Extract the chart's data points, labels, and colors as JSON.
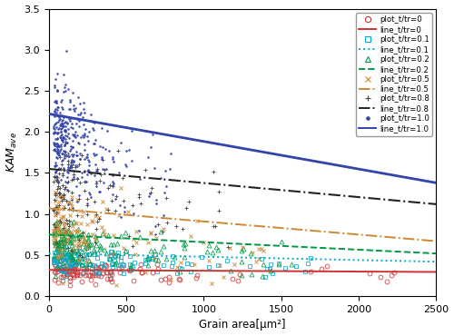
{
  "xlabel": "Grain area[μm²]",
  "xlim": [
    0,
    2500
  ],
  "ylim": [
    0.0,
    3.5
  ],
  "yticks": [
    0.0,
    0.5,
    1.0,
    1.5,
    2.0,
    2.5,
    3.0,
    3.5
  ],
  "xticks": [
    0,
    500,
    1000,
    1500,
    2000,
    2500
  ],
  "series": [
    {
      "label": "t/tr=0",
      "color_plot": "#cc3333",
      "color_line": "#cc3333",
      "marker": "o",
      "mfc": "none",
      "ms": 3.5,
      "mew": 0.6,
      "linestyle": "-",
      "lw": 1.4,
      "line_y0": 0.32,
      "line_y1": 0.295,
      "n_points": 90,
      "x_scale": 250,
      "x_max_scatter": 2300,
      "y_base": 0.3,
      "y_std": 0.07,
      "n_uniform": 30
    },
    {
      "label": "t/tr=0.1",
      "color_plot": "#00aacc",
      "color_line": "#00aacc",
      "marker": "s",
      "mfc": "none",
      "ms": 3.5,
      "mew": 0.6,
      "linestyle": "dotted",
      "lw": 1.4,
      "line_y0": 0.52,
      "line_y1": 0.42,
      "n_points": 120,
      "x_scale": 200,
      "x_max_scatter": 1700,
      "y_base": 0.46,
      "y_std": 0.09,
      "n_uniform": 40
    },
    {
      "label": "t/tr=0.2",
      "color_plot": "#009944",
      "color_line": "#009944",
      "marker": "^",
      "mfc": "none",
      "ms": 3.5,
      "mew": 0.6,
      "linestyle": "dashed",
      "lw": 1.4,
      "line_y0": 0.75,
      "line_y1": 0.52,
      "n_points": 120,
      "x_scale": 180,
      "x_max_scatter": 1600,
      "y_base": 0.65,
      "y_std": 0.13,
      "n_uniform": 40
    },
    {
      "label": "t/tr=0.5",
      "color_plot": "#cc8833",
      "color_line": "#cc8833",
      "marker": "x",
      "mfc": "#cc8833",
      "ms": 3.5,
      "mew": 0.7,
      "linestyle": "dashdot",
      "lw": 1.4,
      "line_y0": 1.07,
      "line_y1": 0.67,
      "n_points": 110,
      "x_scale": 160,
      "x_max_scatter": 1400,
      "y_base": 0.88,
      "y_std": 0.22,
      "n_uniform": 35
    },
    {
      "label": "t/tr=0.8",
      "color_plot": "#444444",
      "color_line": "#222222",
      "marker": "+",
      "mfc": "#444444",
      "ms": 3.5,
      "mew": 0.7,
      "linestyle": "dashdot",
      "lw": 1.5,
      "line_y0": 1.55,
      "line_y1": 1.12,
      "n_points": 100,
      "x_scale": 150,
      "x_max_scatter": 1200,
      "y_base": 1.28,
      "y_std": 0.28,
      "n_uniform": 30
    },
    {
      "label": "t/tr=1.0",
      "color_plot": "#3344aa",
      "color_line": "#3344aa",
      "marker": ".",
      "mfc": "#3344aa",
      "ms": 2.5,
      "mew": 0.5,
      "linestyle": "-",
      "lw": 2.0,
      "line_y0": 2.22,
      "line_y1": 1.38,
      "n_points": 300,
      "x_scale": 130,
      "x_max_scatter": 800,
      "y_base": 2.05,
      "y_std": 0.3,
      "n_uniform": 50
    }
  ],
  "legend_entries": [
    {
      "marker": "o",
      "mfc": "none",
      "mec": "#cc3333",
      "lc": "#cc3333",
      "ls": "-",
      "plabel": "plot_t/tr=0",
      "llabel": "line_t/tr=0"
    },
    {
      "marker": "s",
      "mfc": "none",
      "mec": "#00aacc",
      "lc": "#00aacc",
      "ls": "dotted",
      "plabel": "plot_t/tr=0.1",
      "llabel": "line_t/tr=0.1"
    },
    {
      "marker": "^",
      "mfc": "none",
      "mec": "#009944",
      "lc": "#009944",
      "ls": "dashed",
      "plabel": "plot_t/tr=0.2",
      "llabel": "line_t/tr=0.2"
    },
    {
      "marker": "x",
      "mfc": "#cc8833",
      "mec": "#cc8833",
      "lc": "#cc8833",
      "ls": "dashdot",
      "plabel": "plot_t/tr=0.5",
      "llabel": "line_t/tr=0.5"
    },
    {
      "marker": "+",
      "mfc": "#444444",
      "mec": "#444444",
      "lc": "#222222",
      "ls": "dashdot",
      "plabel": "plot_t/tr=0.8",
      "llabel": "line_t/tr=0.8"
    },
    {
      "marker": ".",
      "mfc": "#3344aa",
      "mec": "#3344aa",
      "lc": "#3344aa",
      "ls": "-",
      "plabel": "plot_t/tr=1.0",
      "llabel": "line_t/tr=1.0"
    }
  ]
}
